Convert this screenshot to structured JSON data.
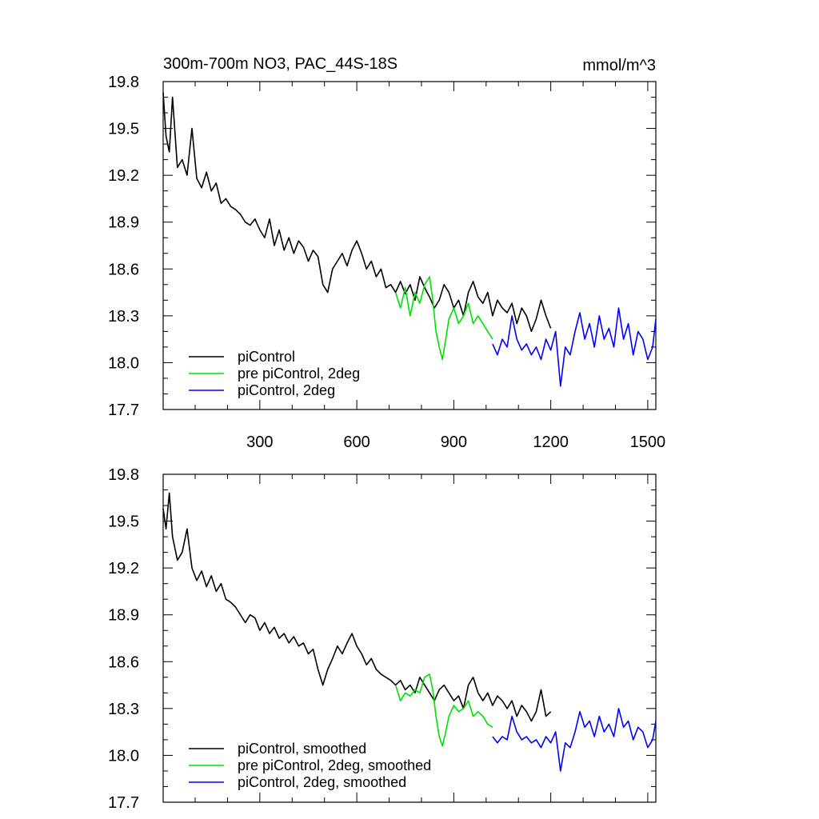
{
  "chart_data": [
    {
      "type": "line",
      "title": "300m-700m NO3, PAC_44S-18S",
      "units": "mmol/m^3",
      "xlim": [
        1,
        1525
      ],
      "ylim": [
        17.7,
        19.8
      ],
      "yticks": [
        "19.8",
        "19.5",
        "19.2",
        "18.9",
        "18.6",
        "18.3",
        "18.0",
        "17.7"
      ],
      "xticks": [
        "300",
        "600",
        "900",
        "1200",
        "1500"
      ],
      "legend_position": "bottom-left",
      "series": [
        {
          "name": "piControl",
          "color": "#000000",
          "x": [
            1,
            10,
            20,
            30,
            45,
            60,
            75,
            90,
            105,
            120,
            135,
            150,
            165,
            180,
            195,
            210,
            225,
            240,
            255,
            270,
            285,
            300,
            315,
            330,
            345,
            360,
            375,
            390,
            405,
            420,
            435,
            450,
            465,
            480,
            495,
            510,
            525,
            540,
            555,
            570,
            585,
            600,
            615,
            630,
            645,
            660,
            675,
            690,
            705,
            720,
            735,
            750,
            765,
            780,
            795,
            810,
            825,
            840,
            855,
            870,
            885,
            900,
            915,
            930,
            945,
            960,
            975,
            990,
            1005,
            1020,
            1035,
            1050,
            1065,
            1080,
            1095,
            1110,
            1125,
            1140,
            1155,
            1170,
            1185,
            1200
          ],
          "values": [
            19.73,
            19.45,
            19.35,
            19.7,
            19.25,
            19.3,
            19.2,
            19.5,
            19.18,
            19.12,
            19.22,
            19.1,
            19.15,
            19.02,
            19.05,
            19.0,
            18.98,
            18.95,
            18.9,
            18.88,
            18.92,
            18.85,
            18.8,
            18.92,
            18.75,
            18.85,
            18.72,
            18.8,
            18.7,
            18.78,
            18.74,
            18.65,
            18.72,
            18.68,
            18.5,
            18.45,
            18.6,
            18.65,
            18.7,
            18.62,
            18.72,
            18.78,
            18.7,
            18.6,
            18.65,
            18.55,
            18.6,
            18.48,
            18.5,
            18.45,
            18.52,
            18.44,
            18.5,
            18.4,
            18.55,
            18.48,
            18.42,
            18.35,
            18.4,
            18.5,
            18.45,
            18.35,
            18.4,
            18.3,
            18.45,
            18.52,
            18.42,
            18.38,
            18.45,
            18.3,
            18.4,
            18.35,
            18.32,
            18.38,
            18.25,
            18.35,
            18.3,
            18.2,
            18.28,
            18.4,
            18.3,
            18.22
          ]
        },
        {
          "name": "pre piControl, 2deg",
          "color": "#00e000",
          "x": [
            720,
            735,
            750,
            765,
            780,
            795,
            810,
            825,
            835,
            845,
            855,
            865,
            875,
            885,
            900,
            915,
            930,
            945,
            960,
            975,
            990,
            1005,
            1020
          ],
          "values": [
            18.45,
            18.35,
            18.48,
            18.3,
            18.45,
            18.38,
            18.5,
            18.55,
            18.4,
            18.2,
            18.1,
            18.02,
            18.15,
            18.28,
            18.35,
            18.25,
            18.3,
            18.38,
            18.25,
            18.3,
            18.25,
            18.2,
            18.15
          ]
        },
        {
          "name": "piControl, 2deg",
          "color": "#0000ff",
          "x": [
            1020,
            1035,
            1050,
            1065,
            1080,
            1095,
            1110,
            1125,
            1140,
            1155,
            1170,
            1185,
            1200,
            1215,
            1230,
            1245,
            1260,
            1275,
            1290,
            1305,
            1320,
            1335,
            1350,
            1365,
            1380,
            1395,
            1410,
            1425,
            1440,
            1455,
            1470,
            1485,
            1500,
            1515,
            1525
          ],
          "values": [
            18.12,
            18.05,
            18.15,
            18.1,
            18.3,
            18.15,
            18.08,
            18.12,
            18.05,
            18.1,
            18.02,
            18.15,
            18.08,
            18.2,
            17.85,
            18.1,
            18.05,
            18.2,
            18.32,
            18.15,
            18.25,
            18.1,
            18.3,
            18.15,
            18.22,
            18.1,
            18.35,
            18.15,
            18.25,
            18.05,
            18.2,
            18.15,
            18.02,
            18.1,
            18.28
          ]
        }
      ]
    },
    {
      "type": "line",
      "xlim": [
        1,
        1525
      ],
      "ylim": [
        17.7,
        19.8
      ],
      "yticks": [
        "19.8",
        "19.5",
        "19.2",
        "18.9",
        "18.6",
        "18.3",
        "18.0",
        "17.7"
      ],
      "legend_position": "bottom-left",
      "series": [
        {
          "name": "piControl, smoothed",
          "color": "#000000",
          "x": [
            1,
            10,
            20,
            30,
            45,
            60,
            75,
            90,
            105,
            120,
            135,
            150,
            165,
            180,
            195,
            210,
            225,
            240,
            255,
            270,
            285,
            300,
            315,
            330,
            345,
            360,
            375,
            390,
            405,
            420,
            435,
            450,
            465,
            480,
            495,
            510,
            525,
            540,
            555,
            570,
            585,
            600,
            615,
            630,
            645,
            660,
            675,
            690,
            705,
            720,
            735,
            750,
            765,
            780,
            795,
            810,
            825,
            840,
            855,
            870,
            885,
            900,
            915,
            930,
            945,
            960,
            975,
            990,
            1005,
            1020,
            1035,
            1050,
            1065,
            1080,
            1095,
            1110,
            1125,
            1140,
            1155,
            1170,
            1185,
            1200
          ],
          "values": [
            19.58,
            19.45,
            19.68,
            19.4,
            19.25,
            19.3,
            19.45,
            19.2,
            19.12,
            19.18,
            19.08,
            19.15,
            19.05,
            19.1,
            19.0,
            18.98,
            18.95,
            18.9,
            18.85,
            18.9,
            18.88,
            18.8,
            18.85,
            18.78,
            18.82,
            18.75,
            18.78,
            18.72,
            18.76,
            18.7,
            18.72,
            18.65,
            18.68,
            18.55,
            18.45,
            18.55,
            18.62,
            18.7,
            18.65,
            18.72,
            18.78,
            18.7,
            18.65,
            18.58,
            18.62,
            18.55,
            18.52,
            18.5,
            18.48,
            18.45,
            18.48,
            18.42,
            18.45,
            18.4,
            18.5,
            18.45,
            18.4,
            18.35,
            18.42,
            18.45,
            18.4,
            18.35,
            18.38,
            18.3,
            18.45,
            18.5,
            18.4,
            18.35,
            18.4,
            18.32,
            18.38,
            18.35,
            18.3,
            18.35,
            18.25,
            18.32,
            18.28,
            18.22,
            18.28,
            18.42,
            18.25,
            18.28
          ]
        },
        {
          "name": "pre piControl, 2deg, smoothed",
          "color": "#00e000",
          "x": [
            720,
            735,
            750,
            765,
            780,
            795,
            810,
            825,
            835,
            845,
            855,
            865,
            875,
            885,
            900,
            915,
            930,
            945,
            960,
            975,
            990,
            1005,
            1020
          ],
          "values": [
            18.45,
            18.35,
            18.4,
            18.38,
            18.42,
            18.4,
            18.5,
            18.52,
            18.42,
            18.25,
            18.12,
            18.06,
            18.15,
            18.25,
            18.32,
            18.28,
            18.3,
            18.35,
            18.25,
            18.28,
            18.25,
            18.2,
            18.18
          ]
        },
        {
          "name": "piControl, 2deg, smoothed",
          "color": "#0000ff",
          "x": [
            1020,
            1035,
            1050,
            1065,
            1080,
            1095,
            1110,
            1125,
            1140,
            1155,
            1170,
            1185,
            1200,
            1215,
            1230,
            1245,
            1260,
            1275,
            1290,
            1305,
            1320,
            1335,
            1350,
            1365,
            1380,
            1395,
            1410,
            1425,
            1440,
            1455,
            1470,
            1485,
            1500,
            1515,
            1525
          ],
          "values": [
            18.12,
            18.08,
            18.12,
            18.1,
            18.25,
            18.15,
            18.1,
            18.12,
            18.08,
            18.1,
            18.05,
            18.12,
            18.08,
            18.15,
            17.9,
            18.08,
            18.05,
            18.15,
            18.28,
            18.18,
            18.22,
            18.12,
            18.25,
            18.15,
            18.2,
            18.12,
            18.3,
            18.18,
            18.22,
            18.1,
            18.18,
            18.15,
            18.05,
            18.1,
            18.22
          ]
        }
      ]
    }
  ]
}
